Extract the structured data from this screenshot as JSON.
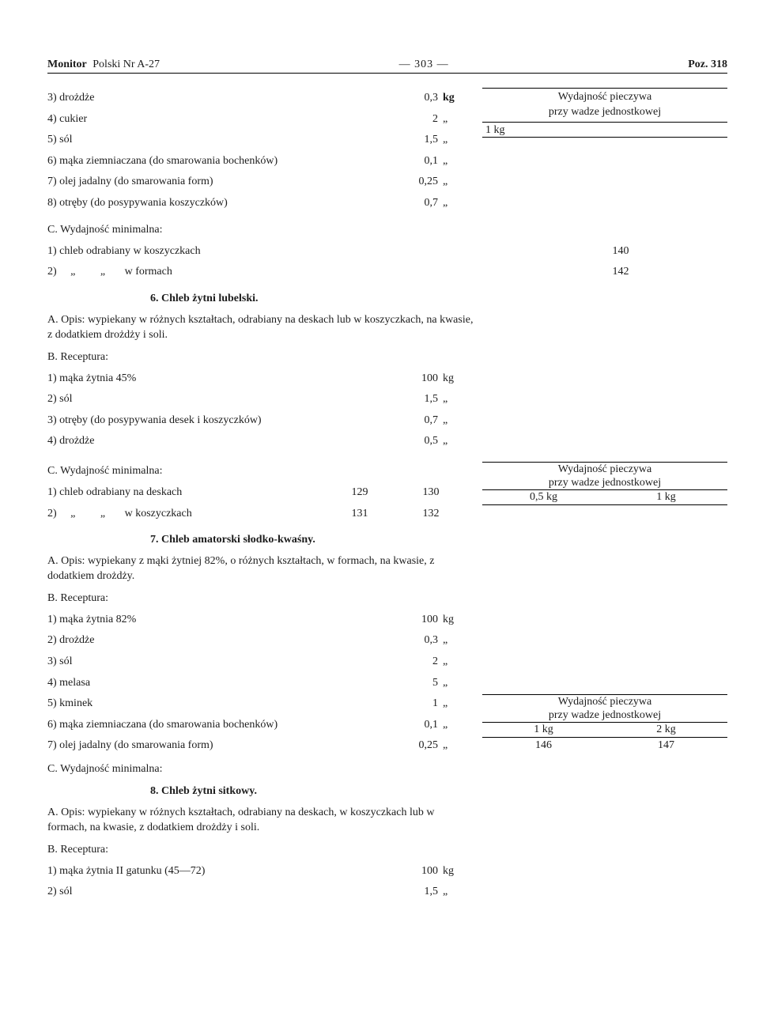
{
  "header": {
    "left_bold": "Monitor",
    "left_rest": "Polski Nr A-27",
    "center": "— 303 —",
    "right": "Poz. 318"
  },
  "s5_top": {
    "items": [
      {
        "n": "3)",
        "label": "drożdże",
        "amt": "0,3",
        "unit": "kg"
      },
      {
        "n": "4)",
        "label": "cukier",
        "amt": "2",
        "unit": "„"
      },
      {
        "n": "5)",
        "label": "sól",
        "amt": "1,5",
        "unit": "„"
      },
      {
        "n": "6)",
        "label": "mąka ziemniaczana (do smarowania bochenków)",
        "amt": "0,1",
        "unit": "„"
      },
      {
        "n": "7)",
        "label": "olej jadalny (do smarowania form)",
        "amt": "0,25",
        "unit": "„"
      },
      {
        "n": "8)",
        "label": "otręby (do posypywania koszyczków)",
        "amt": "0,7",
        "unit": "„"
      }
    ],
    "yield_title": "Wydajność pieczywa",
    "yield_sub": "przy wadze jednostkowej",
    "yield_unit": "1 kg",
    "c_label": "C.  Wydajność minimalna:",
    "c_items": [
      {
        "n": "1)",
        "label": "chleb odrabiany w koszyczkach",
        "v": "140"
      },
      {
        "n": "2)",
        "label": "    „         „       w formach",
        "v": "142"
      }
    ]
  },
  "s6": {
    "heading": "6.  Chleb żytni lubelski.",
    "a": "A.  Opis: wypiekany w różnych kształtach, odrabiany na deskach lub w koszyczkach, na kwasie, z dodatkiem drożdży i soli.",
    "b_label": "B.  Receptura:",
    "items": [
      {
        "n": "1)",
        "label": "mąka żytnia 45%",
        "amt": "100",
        "unit": "kg"
      },
      {
        "n": "2)",
        "label": "sól",
        "amt": "1,5",
        "unit": "„"
      },
      {
        "n": "3)",
        "label": "otręby (do posypywania desek i koszyczków)",
        "amt": "0,7",
        "unit": "„"
      },
      {
        "n": "4)",
        "label": "drożdże",
        "amt": "0,5",
        "unit": "„"
      }
    ],
    "c_label": "C.  Wydajność minimalna:",
    "c_items": [
      {
        "n": "1)",
        "label": "chleb odrabiany na deskach",
        "v1": "129",
        "v2": "130"
      },
      {
        "n": "2)",
        "label": "    „         „       w koszyczkach",
        "v1": "131",
        "v2": "132"
      }
    ],
    "yield_title": "Wydajność pieczywa",
    "yield_sub": "przy wadze jednostkowej",
    "yield_c1": "0,5 kg",
    "yield_c2": "1 kg"
  },
  "s7": {
    "heading": "7.  Chleb amatorski słodko-kwaśny.",
    "a": "A.  Opis: wypiekany z mąki żytniej 82%, o różnych kształtach, w formach, na kwasie, z dodatkiem drożdży.",
    "b_label": "B.  Receptura:",
    "items": [
      {
        "n": "1)",
        "label": "mąka żytnia 82%",
        "amt": "100",
        "unit": "kg"
      },
      {
        "n": "2)",
        "label": "drożdże",
        "amt": "0,3",
        "unit": "„"
      },
      {
        "n": "3)",
        "label": "sól",
        "amt": "2",
        "unit": "„"
      },
      {
        "n": "4)",
        "label": "melasa",
        "amt": "5",
        "unit": "„"
      },
      {
        "n": "5)",
        "label": "kminek",
        "amt": "1",
        "unit": "„"
      },
      {
        "n": "6)",
        "label": "mąka ziemniaczana (do smarowania bochenków)",
        "amt": "0,1",
        "unit": "„"
      },
      {
        "n": "7)",
        "label": "olej jadalny (do smarowania form)",
        "amt": "0,25",
        "unit": "„"
      }
    ],
    "c_label": "C.  Wydajność minimalna:",
    "yield_title": "Wydajność pieczywa",
    "yield_sub": "przy wadze jednostkowej",
    "yield_c1": "1 kg",
    "yield_c2": "2 kg",
    "yield_v1": "146",
    "yield_v2": "147"
  },
  "s8": {
    "heading": "8.  Chleb żytni sitkowy.",
    "a": "A.  Opis: wypiekany w różnych kształtach, odrabiany na deskach, w koszyczkach lub w formach, na kwasie, z dodatkiem drożdży i soli.",
    "b_label": "B.  Receptura:",
    "items": [
      {
        "n": "1)",
        "label": "mąka żytnia II gatunku (45—72)",
        "amt": "100",
        "unit": "kg"
      },
      {
        "n": "2)",
        "label": "sól",
        "amt": "1,5",
        "unit": "„"
      }
    ]
  }
}
